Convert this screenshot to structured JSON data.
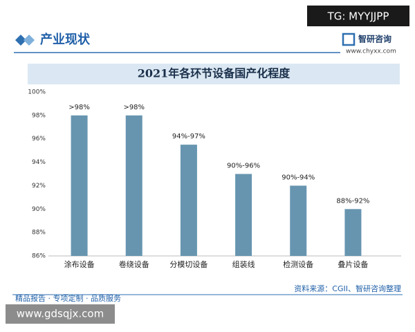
{
  "watermark_top": "TG: MYYJJPP",
  "header": {
    "section_title": "产业现状",
    "brand": "智研咨询",
    "url": "www.chyxx.com"
  },
  "footer": {
    "slogan": "精品报告 · 专项定制 · 品质服务",
    "source": "资料来源：CGII、智研咨询整理"
  },
  "watermark_bottom": "www.gdsqjx.com",
  "chart_data": {
    "type": "bar",
    "title": "2021年各环节设备国产化程度",
    "categories": [
      "涂布设备",
      "卷绕设备",
      "分模切设备",
      "组装线",
      "检测设备",
      "叠片设备"
    ],
    "values": [
      98,
      98,
      95.5,
      93,
      92,
      90
    ],
    "value_labels": [
      ">98%",
      ">98%",
      "94%-97%",
      "90%-96%",
      "90%-94%",
      "88%-92%"
    ],
    "color": "#6795b0",
    "ylim": [
      86,
      100
    ],
    "yticks": [
      {
        "value": 86,
        "label": "86%"
      },
      {
        "value": 88,
        "label": "88%"
      },
      {
        "value": 90,
        "label": "90%"
      },
      {
        "value": 92,
        "label": "92%"
      },
      {
        "value": 94,
        "label": "94%"
      },
      {
        "value": 96,
        "label": "96%"
      },
      {
        "value": 98,
        "label": "98%"
      },
      {
        "value": 100,
        "label": "100%"
      }
    ],
    "grid": false
  }
}
